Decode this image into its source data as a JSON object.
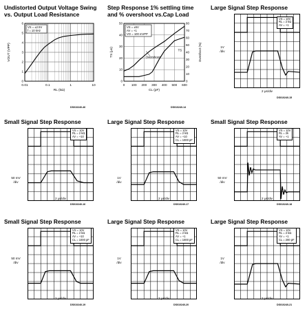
{
  "panels": [
    {
      "title_lines": [
        "Undistorted Output Voltage Swing",
        "vs. Output Load Resistance"
      ],
      "figure_id": "DS010240-46",
      "conditions": [
        "VS = ±2.5V",
        "f = 10 kHz"
      ],
      "xlabel": "RL (kΩ)",
      "ylabel": "VOUT (VPP)",
      "xticks": [
        "0.01",
        "0.1",
        "1",
        "10"
      ],
      "yticks": [
        "0",
        "1",
        "2",
        "3",
        "4",
        "5",
        "6"
      ]
    },
    {
      "title_lines": [
        "Step Response 1% settling time",
        "and % overshoot vs.Cap Load"
      ],
      "figure_id": "DS010240-14",
      "conditions": [
        "VS = ±5V",
        "AV = +1",
        "VO = 100 mVPP"
      ],
      "xlabel": "CL (pF)",
      "ylabel": "TS (μs)",
      "ylabel_right": "Overshoot (%)",
      "xticks": [
        "0",
        "100",
        "200",
        "300",
        "400",
        "500",
        "600"
      ],
      "yticks": [
        "0",
        "10",
        "20",
        "30",
        "40",
        "50"
      ],
      "yticks_right": [
        "0",
        "10",
        "20",
        "30",
        "40",
        "50",
        "60",
        "70",
        "80"
      ],
      "annotation_overshoot": "Overshoot",
      "annotation_ts": "TS"
    },
    {
      "title_lines": [
        "Large Signal Step Response"
      ],
      "figure_id": "DS010240-15",
      "conditions": [
        "VS = 10V",
        "RL = 2 kΩ",
        "AV = +1"
      ],
      "xcap": "2 μs/div",
      "ycap": [
        "1V",
        "/div"
      ]
    },
    {
      "title_lines": [
        "Small Signal Step Response"
      ],
      "figure_id": "DS010240-16",
      "conditions": [
        "VS = 10V",
        "RL = 2 kΩ",
        "AV = +10"
      ],
      "xcap": "2 μs/div",
      "ycap": [
        "50 mV",
        "/div"
      ]
    },
    {
      "title_lines": [
        "Large Signal Step Response"
      ],
      "figure_id": "DS010240-17",
      "conditions": [
        "VS = 10V",
        "RL = 2 kΩ",
        "AV = +10",
        "CL = 1000 pF"
      ],
      "xcap": "2 μs/div",
      "ycap": [
        "1V",
        "/div"
      ]
    },
    {
      "title_lines": [
        "Small Signal Step Response"
      ],
      "figure_id": "DS010240-18",
      "conditions": [
        "VS = 10V",
        "RL = 2k",
        "AV = +1"
      ],
      "xcap": "2 μs/div",
      "ycap": [
        "50 mV",
        "/div"
      ]
    },
    {
      "title_lines": [
        "Small Signal Step Response"
      ],
      "figure_id": "DS010240-19",
      "conditions": [
        "VS = 10V",
        "RL = 2 kΩ",
        "AV = +10",
        "CL = 1000 pF"
      ],
      "xcap": "2 μs/div",
      "ycap": [
        "50 mV",
        "/div"
      ]
    },
    {
      "title_lines": [
        "Large Signal Step Response"
      ],
      "figure_id": "DS010240-20",
      "conditions": [
        "VS = 10V",
        "RL = 2 kΩ",
        "AV = +1",
        "CL = 1000 pF"
      ],
      "xcap": "2 μs/div",
      "ycap": [
        "1V",
        "/div"
      ]
    },
    {
      "title_lines": [
        "Large Signal Step Response"
      ],
      "figure_id": "DS010240-21",
      "conditions": [
        "VS = 10V",
        "RL = 2 kΩ",
        "AV = +1",
        "CL = 200 pF"
      ],
      "xcap": "2 μs/div",
      "ycap": [
        "1V",
        "/div"
      ]
    }
  ],
  "chart_data": [
    {
      "type": "line",
      "title": "Undistorted Output Voltage Swing vs. Output Load Resistance",
      "xlabel": "RL (kΩ)",
      "ylabel": "VOUT (VPP)",
      "xscale": "log",
      "xlim": [
        0.01,
        10
      ],
      "ylim": [
        0,
        6
      ],
      "grid": true,
      "series": [
        {
          "x": [
            0.01,
            0.02,
            0.03,
            0.05,
            0.07,
            0.1,
            0.2,
            0.3,
            0.5,
            1,
            2,
            3,
            5,
            10
          ],
          "y": [
            0.8,
            1.8,
            2.4,
            3.1,
            3.5,
            3.8,
            4.3,
            4.5,
            4.65,
            4.75,
            4.82,
            4.85,
            4.88,
            4.9
          ]
        }
      ]
    },
    {
      "type": "line",
      "title": "Step Response 1% settling time and % overshoot vs.Cap Load",
      "xlabel": "CL (pF)",
      "ylabel": "TS (μs)",
      "ylabel_right": "Overshoot (%)",
      "xlim": [
        0,
        600
      ],
      "ylim": [
        0,
        50
      ],
      "ylim_right": [
        0,
        80
      ],
      "grid": true,
      "series": [
        {
          "name": "Overshoot",
          "axis": "right",
          "x": [
            0,
            50,
            100,
            150,
            200,
            250,
            300,
            400,
            500,
            600
          ],
          "y": [
            14,
            17,
            22,
            29,
            35,
            41,
            46,
            55,
            66,
            76
          ]
        },
        {
          "name": "TS",
          "axis": "left",
          "x": [
            0,
            100,
            150,
            200,
            250,
            280,
            300,
            350,
            400,
            500,
            600
          ],
          "y": [
            4,
            4,
            4,
            5,
            6,
            8,
            11,
            19,
            26,
            35,
            38
          ]
        }
      ]
    },
    {
      "type": "line",
      "title": "Large Signal Step Response",
      "xlabel": "2 μs/div",
      "ylabel": "1V/div",
      "xlim": [
        0,
        10
      ],
      "ylim": [
        -4,
        4
      ],
      "grid": true,
      "series": [
        {
          "name": "input",
          "x": [
            0,
            2,
            2,
            7,
            7,
            10
          ],
          "y": [
            2,
            2,
            3.6,
            3.6,
            2,
            2
          ]
        },
        {
          "name": "output",
          "x": [
            0,
            2,
            2.8,
            3.3,
            6.6,
            7.3,
            7.8,
            8.2,
            10
          ],
          "y": [
            -2.3,
            -2.3,
            -0.1,
            0,
            0,
            -1.8,
            -2.6,
            -2.2,
            -2.3
          ]
        }
      ]
    },
    {
      "type": "line",
      "title": "Small Signal Step Response",
      "xlabel": "2 μs/div",
      "ylabel": "50 mV/div",
      "xlim": [
        0,
        10
      ],
      "ylim": [
        -4,
        4
      ],
      "grid": true,
      "series": [
        {
          "name": "input",
          "x": [
            0,
            2,
            2,
            7,
            7,
            10
          ],
          "y": [
            2,
            2,
            3.6,
            3.6,
            2,
            2
          ]
        },
        {
          "name": "output",
          "x": [
            0,
            2,
            3,
            3.6,
            6.5,
            7.5,
            8.5,
            10
          ],
          "y": [
            -2,
            -2,
            -0.8,
            -0.7,
            -0.7,
            -1.8,
            -2,
            -2
          ]
        }
      ]
    },
    {
      "type": "line",
      "title": "Large Signal Step Response",
      "xlabel": "2 μs/div",
      "ylabel": "1V/div",
      "xlim": [
        0,
        10
      ],
      "ylim": [
        -4,
        4
      ],
      "grid": true,
      "series": [
        {
          "name": "input",
          "x": [
            0,
            2,
            2,
            7,
            7,
            10
          ],
          "y": [
            2,
            2,
            3.6,
            3.6,
            2,
            2
          ]
        },
        {
          "name": "output",
          "x": [
            0,
            2,
            2.8,
            3.4,
            6.5,
            7.3,
            8,
            10
          ],
          "y": [
            -2.2,
            -2.2,
            -0.9,
            -0.8,
            -0.8,
            -1.9,
            -2.2,
            -2.2
          ]
        }
      ]
    },
    {
      "type": "line",
      "title": "Small Signal Step Response",
      "xlabel": "2 μs/div",
      "ylabel": "50 mV/div",
      "xlim": [
        0,
        10
      ],
      "ylim": [
        -4,
        4
      ],
      "grid": true,
      "series": [
        {
          "name": "input",
          "x": [
            0,
            2,
            2,
            7,
            7,
            10
          ],
          "y": [
            2,
            2,
            3.6,
            3.6,
            2,
            2
          ]
        },
        {
          "name": "output",
          "x": [
            0,
            2,
            2.1,
            2.3,
            2.5,
            2.7,
            2.9,
            3.2,
            6.5,
            7,
            7.1,
            7.3,
            7.5,
            7.7,
            7.9,
            8.2,
            10
          ],
          "y": [
            -3,
            -3,
            0.2,
            -1.2,
            -0.3,
            -0.9,
            -0.5,
            -0.6,
            -0.6,
            -0.6,
            -3.8,
            -2.4,
            -3.3,
            -2.8,
            -3.1,
            -3,
            -3
          ]
        }
      ]
    },
    {
      "type": "line",
      "title": "Small Signal Step Response",
      "xlabel": "2 μs/div",
      "ylabel": "50 mV/div",
      "xlim": [
        0,
        10
      ],
      "ylim": [
        -4,
        4
      ],
      "grid": true,
      "series": [
        {
          "name": "input",
          "x": [
            0,
            2,
            2,
            7,
            7,
            10
          ],
          "y": [
            2,
            2,
            3.6,
            3.6,
            2,
            2
          ]
        },
        {
          "name": "output",
          "x": [
            0,
            2,
            2.7,
            3.3,
            6.5,
            7.4,
            8,
            10
          ],
          "y": [
            -2.2,
            -2.2,
            -0.9,
            -0.8,
            -0.8,
            -2,
            -2.2,
            -2.2
          ]
        }
      ]
    },
    {
      "type": "line",
      "title": "Large Signal Step Response",
      "xlabel": "2 μs/div",
      "ylabel": "1V/div",
      "xlim": [
        0,
        10
      ],
      "ylim": [
        -4,
        4
      ],
      "grid": true,
      "series": [
        {
          "name": "input",
          "x": [
            0,
            2,
            2,
            7,
            7,
            10
          ],
          "y": [
            2,
            2,
            3.6,
            3.6,
            2,
            2
          ]
        },
        {
          "name": "output",
          "x": [
            0,
            2,
            2.8,
            3.4,
            6.5,
            7.3,
            8,
            10
          ],
          "y": [
            -2.2,
            -2.2,
            -0.9,
            -0.8,
            -0.8,
            -1.9,
            -2.2,
            -2.2
          ]
        }
      ]
    },
    {
      "type": "line",
      "title": "Large Signal Step Response",
      "xlabel": "2 μs/div",
      "ylabel": "1V/div",
      "xlim": [
        0,
        10
      ],
      "ylim": [
        -4,
        4
      ],
      "grid": true,
      "series": [
        {
          "name": "input",
          "x": [
            0,
            2,
            2,
            7,
            7,
            10
          ],
          "y": [
            2,
            2,
            3.6,
            3.6,
            2,
            2
          ]
        },
        {
          "name": "output",
          "x": [
            0,
            2,
            2.8,
            3.3,
            6.6,
            7.3,
            7.8,
            8.2,
            10
          ],
          "y": [
            -2.3,
            -2.3,
            -0.1,
            0,
            0,
            -1.8,
            -2.6,
            -2.2,
            -2.3
          ]
        }
      ]
    }
  ]
}
